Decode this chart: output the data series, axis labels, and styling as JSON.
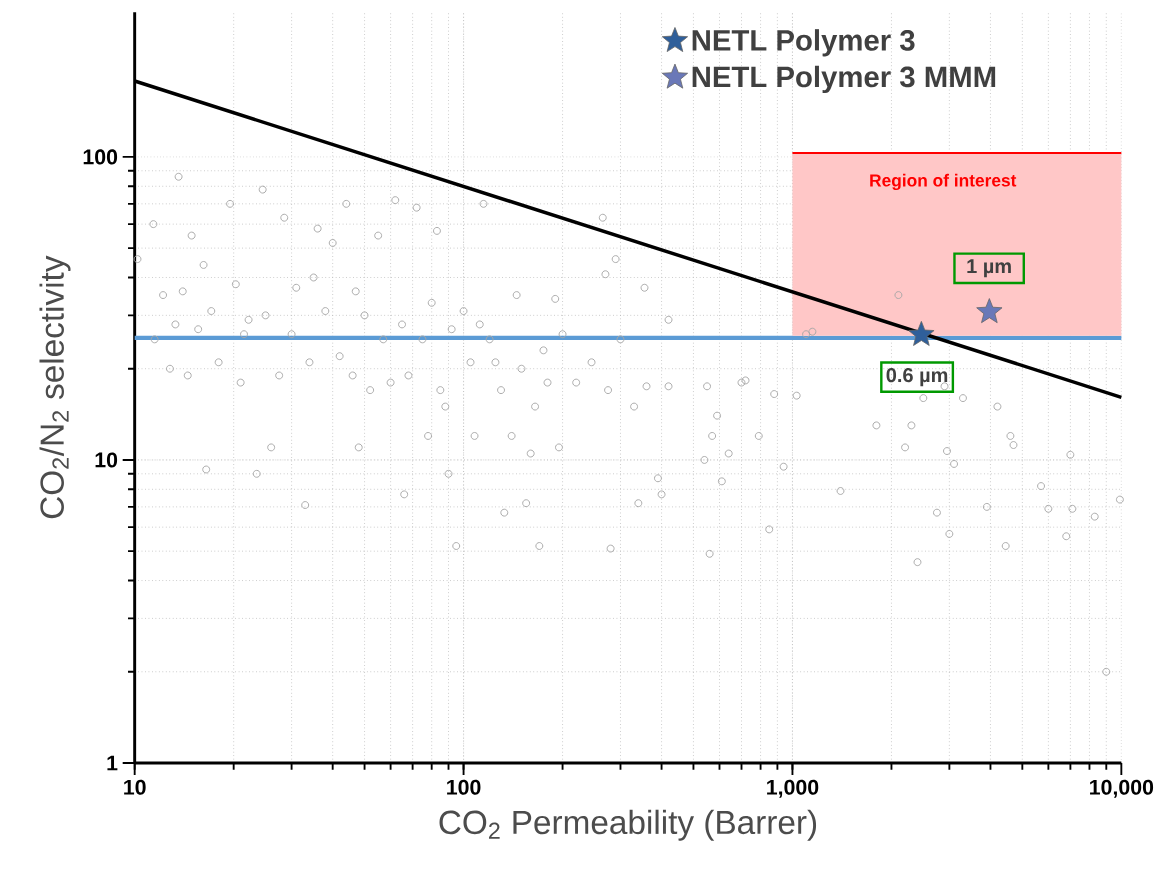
{
  "chart_data": {
    "type": "scatter",
    "xlabel": "CO$_{2}$ Permeability (Barrer)",
    "ylabel": "CO$_{2}$/N$_{2}$ selectivity",
    "log": "xy",
    "grid": true,
    "legend": "top right",
    "xlim": [
      10,
      10000
    ],
    "ylim": [
      1,
      300
    ],
    "xticks": [
      10,
      100,
      {
        "value": 1000,
        "label": "1,000"
      },
      {
        "value": 10000,
        "label": "10,000"
      }
    ],
    "yticks": [
      1,
      10,
      100
    ],
    "ref_lines": [
      {
        "axis": "y",
        "value": 25.3,
        "color": "#5b9bd5"
      }
    ],
    "annotations": [
      "Region of interest",
      "1 µm",
      "0.6 µm"
    ],
    "series": [
      {
        "type": "line",
        "marker": "none",
        "color": "#ff0000",
        "x": [
          1000,
          10000
        ],
        "values": [
          103,
          103
        ],
        "lower": [
          25.7,
          25.7
        ],
        "upper": [
          103,
          103
        ]
      },
      {
        "marker": "circle",
        "color": "#a6a6a6",
        "x": [
          10.2,
          11.4,
          11.5,
          12.2,
          12.8,
          13.3,
          13.6,
          14.0,
          14.5,
          14.9,
          15.6,
          16.2,
          16.5,
          17.1,
          18.0,
          19.5,
          20.3,
          21,
          21.5,
          22.2,
          23.5,
          24.5,
          25,
          26,
          27.5,
          28.5,
          30,
          31,
          33,
          34,
          35,
          36,
          38,
          40,
          42,
          44,
          46,
          47,
          48,
          50,
          52,
          55,
          57,
          60,
          62,
          65,
          66,
          68,
          72,
          75,
          78,
          80,
          83,
          85,
          88,
          90,
          92,
          95,
          100,
          105,
          108,
          112,
          115,
          120,
          125,
          130,
          133,
          140,
          145,
          150,
          155,
          160,
          165,
          170,
          175,
          180,
          190,
          200,
          195,
          220,
          245,
          265,
          270,
          275,
          280,
          290,
          300,
          330,
          340,
          355,
          360,
          390,
          400,
          420,
          420,
          540,
          550,
          560,
          570,
          590,
          610,
          640,
          700,
          720,
          790,
          850,
          880,
          940,
          1030,
          1100,
          1150,
          1400,
          1800,
          2100,
          2200,
          2300,
          2400,
          2500,
          2750,
          2900,
          2950,
          3000,
          3100,
          3300,
          3900,
          4200,
          4450,
          4600,
          4700,
          5700,
          6000,
          6800,
          7000,
          7100,
          8300,
          9000,
          9900
        ],
        "values": [
          46,
          60,
          25,
          35,
          20,
          28,
          86,
          36,
          19,
          55,
          27,
          44,
          9.3,
          31,
          21,
          70,
          38,
          18,
          26,
          29,
          9,
          78,
          30,
          11,
          19,
          63,
          26,
          37,
          7.1,
          21,
          40,
          58,
          31,
          52,
          22,
          70,
          19,
          36,
          11,
          30,
          17,
          55,
          25,
          18,
          72,
          28,
          7.7,
          19,
          68,
          25,
          12,
          33,
          57,
          17,
          15,
          9,
          27,
          5.2,
          31,
          21,
          12,
          28,
          70,
          25,
          21,
          17,
          6.7,
          12,
          35,
          20,
          7.2,
          10.5,
          15,
          5.2,
          23,
          18,
          34,
          26,
          11,
          18,
          21,
          63,
          41,
          17,
          5.1,
          46,
          25,
          15,
          7.2,
          37,
          17.5,
          8.7,
          7.7,
          29,
          17.5,
          10,
          17.5,
          4.9,
          12,
          14,
          8.5,
          10.5,
          18,
          18.3,
          12,
          5.9,
          16.5,
          9.5,
          16.3,
          26,
          26.5,
          7.9,
          13,
          35,
          11,
          13,
          4.6,
          16,
          6.7,
          17.5,
          10.7,
          5.7,
          9.7,
          16,
          7,
          15,
          5.2,
          12,
          11.2,
          8.2,
          6.9,
          5.6,
          10.4,
          6.9,
          6.5,
          2,
          7.4
        ]
      },
      {
        "type": "line",
        "color": "#000000",
        "marker": "none",
        "x": [
          10,
          10000
        ],
        "values": [
          178,
          16.1
        ]
      },
      {
        "marker": "star",
        "name": "NETL Polymer 3",
        "color": "#2f5f9a",
        "x": [
          2466
        ],
        "values": [
          25.9
        ]
      },
      {
        "marker": "star",
        "name": "NETL Polymer 3 MMM",
        "color": "#6a78b8",
        "x": [
          3970
        ],
        "values": [
          30.8
        ]
      }
    ]
  }
}
